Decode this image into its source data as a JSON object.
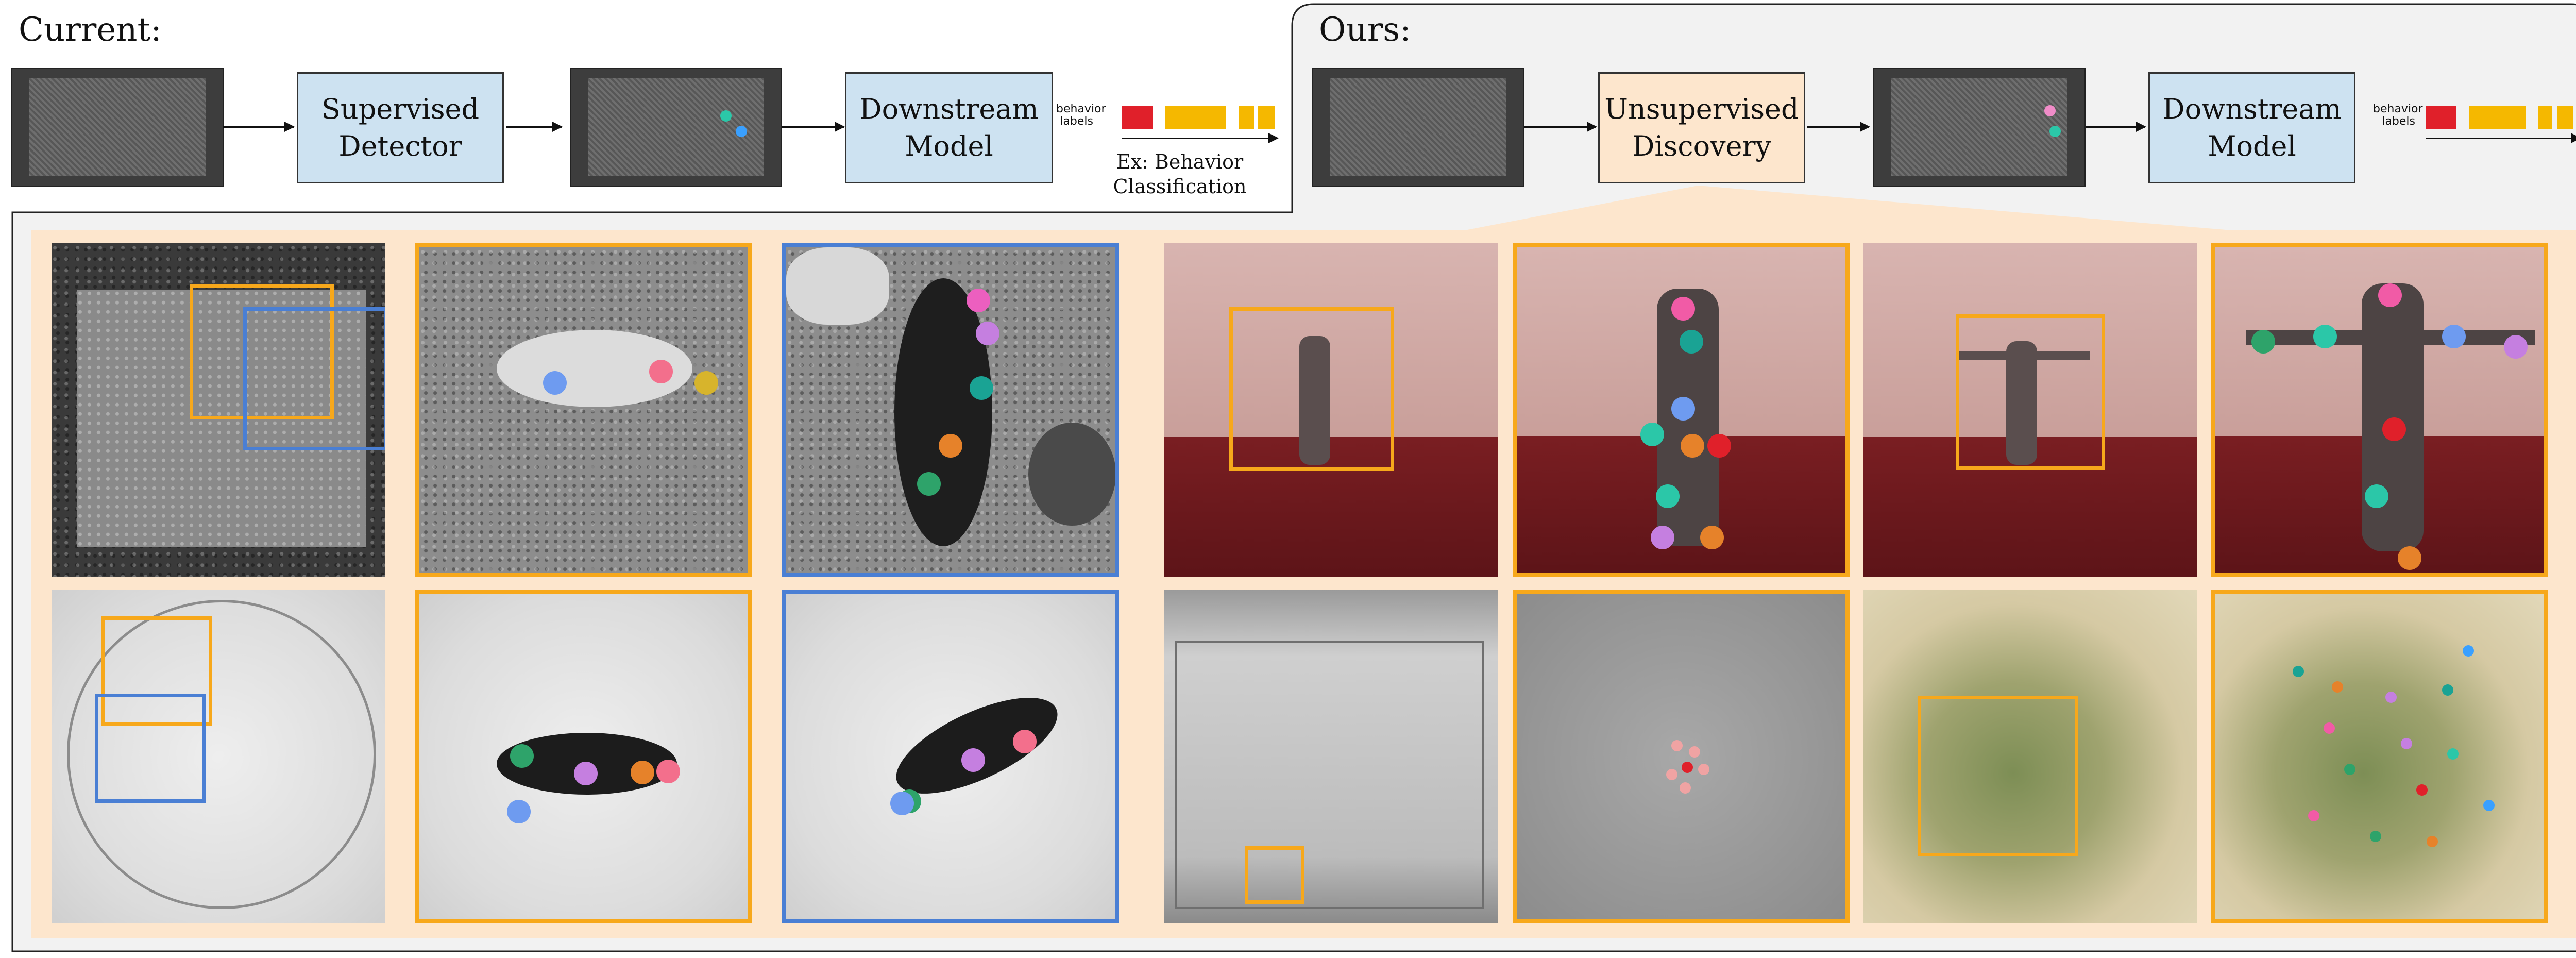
{
  "current": {
    "heading": "Current:",
    "detector_label_line1": "Supervised",
    "detector_label_line2": "Detector",
    "model_label_line1": "Downstream",
    "model_label_line2": "Model",
    "behavior_labels_line1": "behavior",
    "behavior_labels_line2": "labels",
    "example_line1": "Ex: Behavior",
    "example_line2": "Classification"
  },
  "ours": {
    "heading": "Ours:",
    "discovery_label_line1": "Unsupervised",
    "discovery_label_line2": "Discovery",
    "model_label_line1": "Downstream",
    "model_label_line2": "Model",
    "behavior_labels_line1": "behavior",
    "behavior_labels_line2": "labels"
  },
  "colors": {
    "box_blue": "#cde2f1",
    "box_peach": "#fde6cd",
    "highlight_orange": "#f7a81b",
    "highlight_blue": "#4a7fd4",
    "behavior_red": "#e0202a",
    "behavior_yellow": "#f5b800",
    "background_panel": "#fde6cd"
  }
}
